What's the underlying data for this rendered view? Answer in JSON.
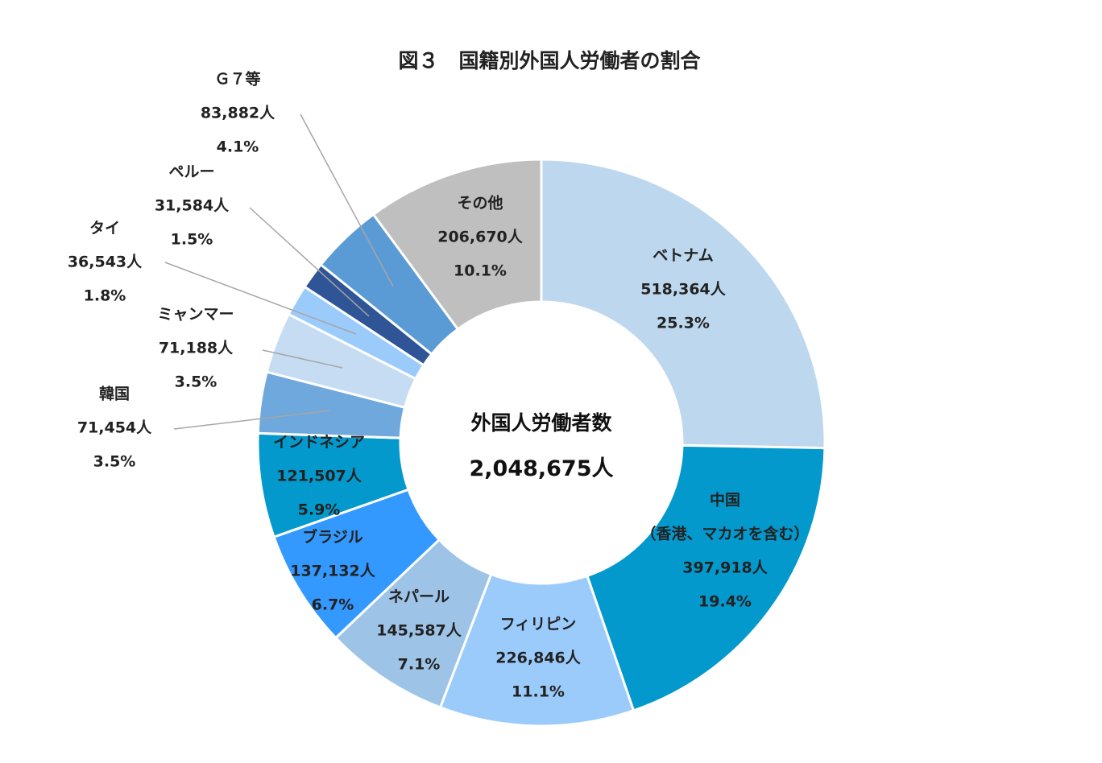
{
  "chart_data": {
    "type": "pie",
    "donut": true,
    "title": "図３　国籍別外国人労働者の割合",
    "center_label": "外国人労働者数",
    "center_value": "2,048,675人",
    "total": 2048675,
    "legend": "none",
    "slices": [
      {
        "name": "ベトナム",
        "value_label": "518,364人",
        "percent_label": "25.3%",
        "value": 518364,
        "color": "#bdd7ee"
      },
      {
        "name": "中国",
        "subname": "（香港、マカオを含む）",
        "value_label": "397,918人",
        "percent_label": "19.4%",
        "value": 397918,
        "color": "#0399cc"
      },
      {
        "name": "フィリピン",
        "value_label": "226,846人",
        "percent_label": "11.1%",
        "value": 226846,
        "color": "#9bcbfb"
      },
      {
        "name": "ネパール",
        "value_label": "145,587人",
        "percent_label": "7.1%",
        "value": 145587,
        "color": "#9dc3e6"
      },
      {
        "name": "ブラジル",
        "value_label": "137,132人",
        "percent_label": "6.7%",
        "value": 137132,
        "color": "#3399ff"
      },
      {
        "name": "インドネシア",
        "value_label": "121,507人",
        "percent_label": "5.9%",
        "value": 121507,
        "color": "#0399cc"
      },
      {
        "name": "韓国",
        "value_label": "71,454人",
        "percent_label": "3.5%",
        "value": 71454,
        "color": "#6fa8dc"
      },
      {
        "name": "ミャンマー",
        "value_label": "71,188人",
        "percent_label": "3.5%",
        "value": 71188,
        "color": "#c5dcf2"
      },
      {
        "name": "タイ",
        "value_label": "36,543人",
        "percent_label": "1.8%",
        "value": 36543,
        "color": "#9bcbfb"
      },
      {
        "name": "ペルー",
        "value_label": "31,584人",
        "percent_label": "1.5%",
        "value": 31584,
        "color": "#2f5597"
      },
      {
        "name": "Ｇ７等",
        "value_label": "83,882人",
        "percent_label": "4.1%",
        "value": 83882,
        "color": "#5b9bd5"
      },
      {
        "name": "その他",
        "value_label": "206,670人",
        "percent_label": "10.1%",
        "value": 206670,
        "color": "#bfbfbf"
      }
    ]
  }
}
